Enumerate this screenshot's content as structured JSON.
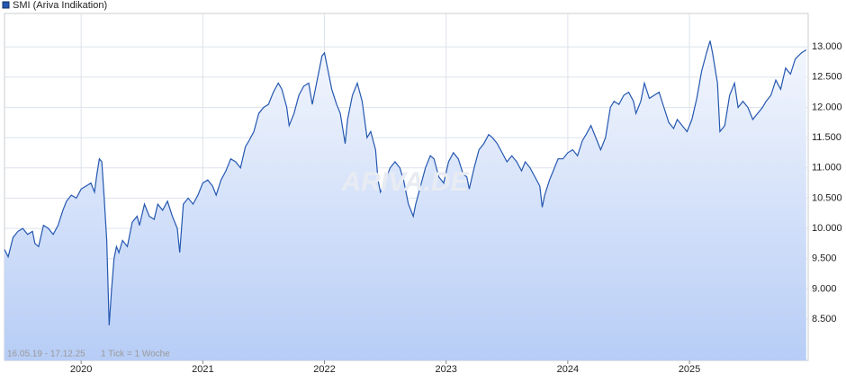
{
  "chart_data": {
    "type": "area-line",
    "watermark": "ARIVA.DE",
    "footer": {
      "range": "16.05.19 - 17.12.25",
      "interval": "1 Tick = 1 Woche"
    },
    "x": [
      2019.37,
      2019.4,
      2019.44,
      2019.48,
      2019.52,
      2019.56,
      2019.6,
      2019.62,
      2019.65,
      2019.69,
      2019.73,
      2019.77,
      2019.81,
      2019.85,
      2019.88,
      2019.92,
      2019.96,
      2020.0,
      2020.04,
      2020.08,
      2020.11,
      2020.13,
      2020.15,
      2020.17,
      2020.19,
      2020.21,
      2020.23,
      2020.25,
      2020.27,
      2020.29,
      2020.31,
      2020.34,
      2020.38,
      2020.42,
      2020.46,
      2020.48,
      2020.52,
      2020.56,
      2020.6,
      2020.63,
      2020.67,
      2020.71,
      2020.75,
      2020.79,
      2020.81,
      2020.84,
      2020.88,
      2020.92,
      2020.96,
      2021.0,
      2021.04,
      2021.08,
      2021.11,
      2021.15,
      2021.19,
      2021.23,
      2021.27,
      2021.31,
      2021.35,
      2021.38,
      2021.42,
      2021.46,
      2021.5,
      2021.54,
      2021.58,
      2021.62,
      2021.65,
      2021.69,
      2021.71,
      2021.75,
      2021.79,
      2021.83,
      2021.87,
      2021.9,
      2021.94,
      2021.98,
      2022.0,
      2022.03,
      2022.06,
      2022.1,
      2022.13,
      2022.17,
      2022.19,
      2022.23,
      2022.27,
      2022.31,
      2022.35,
      2022.38,
      2022.42,
      2022.44,
      2022.46,
      2022.5,
      2022.54,
      2022.58,
      2022.62,
      2022.65,
      2022.69,
      2022.73,
      2022.75,
      2022.79,
      2022.83,
      2022.87,
      2022.9,
      2022.94,
      2022.98,
      2023.02,
      2023.06,
      2023.1,
      2023.14,
      2023.17,
      2023.19,
      2023.23,
      2023.27,
      2023.31,
      2023.35,
      2023.38,
      2023.42,
      2023.46,
      2023.5,
      2023.54,
      2023.58,
      2023.62,
      2023.65,
      2023.69,
      2023.73,
      2023.77,
      2023.79,
      2023.81,
      2023.85,
      2023.88,
      2023.92,
      2023.96,
      2024.0,
      2024.04,
      2024.08,
      2024.12,
      2024.15,
      2024.19,
      2024.23,
      2024.27,
      2024.31,
      2024.35,
      2024.38,
      2024.42,
      2024.46,
      2024.5,
      2024.54,
      2024.56,
      2024.6,
      2024.63,
      2024.67,
      2024.71,
      2024.75,
      2024.79,
      2024.83,
      2024.87,
      2024.9,
      2024.94,
      2024.98,
      2025.02,
      2025.06,
      2025.1,
      2025.14,
      2025.17,
      2025.19,
      2025.23,
      2025.25,
      2025.29,
      2025.33,
      2025.37,
      2025.4,
      2025.44,
      2025.48,
      2025.52,
      2025.56,
      2025.6,
      2025.63,
      2025.67,
      2025.71,
      2025.75,
      2025.79,
      2025.83,
      2025.87,
      2025.92,
      2025.96
    ],
    "series": [
      {
        "name": "SMI (Ariva Indikation)",
        "color": "#2457b0",
        "values": [
          9650,
          9530,
          9850,
          9950,
          10000,
          9900,
          9950,
          9750,
          9700,
          10050,
          10000,
          9900,
          10050,
          10300,
          10450,
          10550,
          10500,
          10650,
          10700,
          10750,
          10600,
          10900,
          11150,
          11100,
          10500,
          9800,
          8400,
          9000,
          9500,
          9700,
          9600,
          9800,
          9700,
          10100,
          10200,
          10050,
          10400,
          10200,
          10150,
          10400,
          10300,
          10450,
          10200,
          10000,
          9600,
          10400,
          10500,
          10400,
          10550,
          10750,
          10800,
          10700,
          10550,
          10800,
          10950,
          11150,
          11100,
          11000,
          11350,
          11450,
          11600,
          11900,
          12000,
          12050,
          12250,
          12400,
          12300,
          12000,
          11700,
          11900,
          12200,
          12350,
          12400,
          12050,
          12450,
          12850,
          12900,
          12600,
          12300,
          12050,
          11900,
          11400,
          11800,
          12200,
          12400,
          12100,
          11500,
          11600,
          11300,
          10800,
          10600,
          10800,
          11000,
          11100,
          11000,
          10800,
          10400,
          10200,
          10400,
          10700,
          11000,
          11200,
          11150,
          10850,
          10750,
          11100,
          11250,
          11150,
          10900,
          10850,
          10650,
          11000,
          11300,
          11400,
          11550,
          11500,
          11400,
          11250,
          11100,
          11200,
          11100,
          10950,
          11100,
          11000,
          10850,
          10700,
          10350,
          10550,
          10800,
          10950,
          11150,
          11150,
          11250,
          11300,
          11200,
          11450,
          11550,
          11700,
          11500,
          11300,
          11500,
          12000,
          12100,
          12050,
          12200,
          12250,
          12100,
          11900,
          12100,
          12400,
          12150,
          12200,
          12250,
          12000,
          11750,
          11650,
          11800,
          11700,
          11600,
          11800,
          12150,
          12600,
          12900,
          13100,
          12900,
          12400,
          11600,
          11700,
          12200,
          12400,
          12000,
          12100,
          12000,
          11800,
          11900,
          12000,
          12100,
          12200,
          12450,
          12300,
          12650,
          12550,
          12800,
          12900,
          12950
        ]
      }
    ],
    "xlim": [
      2019.37,
      2025.976
    ],
    "xticks": [
      2020,
      2021,
      2022,
      2023,
      2024,
      2025
    ],
    "ylim": [
      7817,
      13552
    ],
    "yticks": [
      {
        "value": 8500,
        "label": "8.500"
      },
      {
        "value": 9000,
        "label": "9.000"
      },
      {
        "value": 9500,
        "label": "9.500"
      },
      {
        "value": 10000,
        "label": "10.000"
      },
      {
        "value": 10500,
        "label": "10.500"
      },
      {
        "value": 11000,
        "label": "11.000"
      },
      {
        "value": 11500,
        "label": "11.500"
      },
      {
        "value": 12000,
        "label": "12.000"
      },
      {
        "value": 12500,
        "label": "12.500"
      },
      {
        "value": 13000,
        "label": "13.000"
      }
    ],
    "grid": true
  }
}
